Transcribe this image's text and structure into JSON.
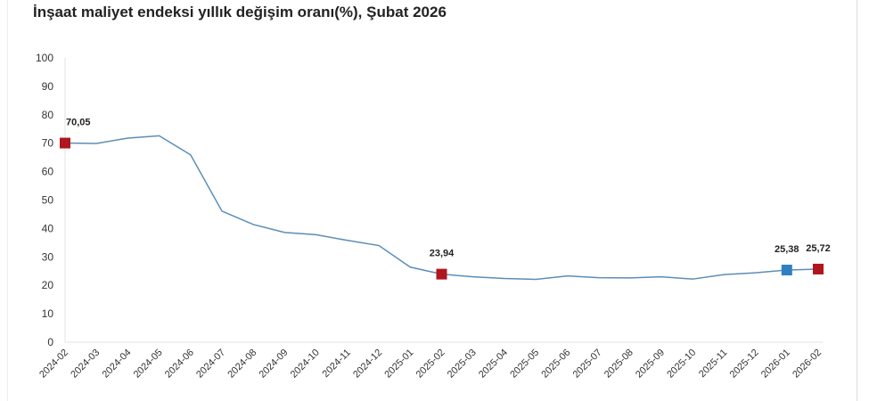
{
  "chart_data": {
    "type": "line",
    "title": "İnşaat maliyet endeksi yıllık değişim oranı(%), Şubat 2026",
    "xlabel": "",
    "ylabel": "",
    "ylim": [
      0,
      100
    ],
    "yticks": [
      "0",
      "10",
      "20",
      "30",
      "40",
      "50",
      "60",
      "70",
      "80",
      "90",
      "100"
    ],
    "categories": [
      "2024-02",
      "2024-03",
      "2024-04",
      "2024-05",
      "2024-06",
      "2024-07",
      "2024-08",
      "2024-09",
      "2024-10",
      "2024-11",
      "2024-12",
      "2025-01",
      "2025-02",
      "2025-03",
      "2025-04",
      "2025-05",
      "2025-06",
      "2025-07",
      "2025-08",
      "2025-09",
      "2025-10",
      "2025-11",
      "2025-12",
      "2026-01",
      "2026-02"
    ],
    "values": [
      70.05,
      69.9,
      71.8,
      72.6,
      65.9,
      46.1,
      41.4,
      38.6,
      37.8,
      35.8,
      34.0,
      26.4,
      23.94,
      23.0,
      22.4,
      22.1,
      23.3,
      22.7,
      22.6,
      23.0,
      22.2,
      23.8,
      24.4,
      25.38,
      25.72
    ],
    "line_color": "#5b8db8",
    "markers": [
      {
        "index": 0,
        "label": "70,05",
        "color": "#b0161d"
      },
      {
        "index": 12,
        "label": "23,94",
        "color": "#b0161d"
      },
      {
        "index": 23,
        "label": "25,38",
        "color": "#2f7fc1"
      },
      {
        "index": 24,
        "label": "25,72",
        "color": "#b0161d"
      }
    ],
    "grid": false
  }
}
